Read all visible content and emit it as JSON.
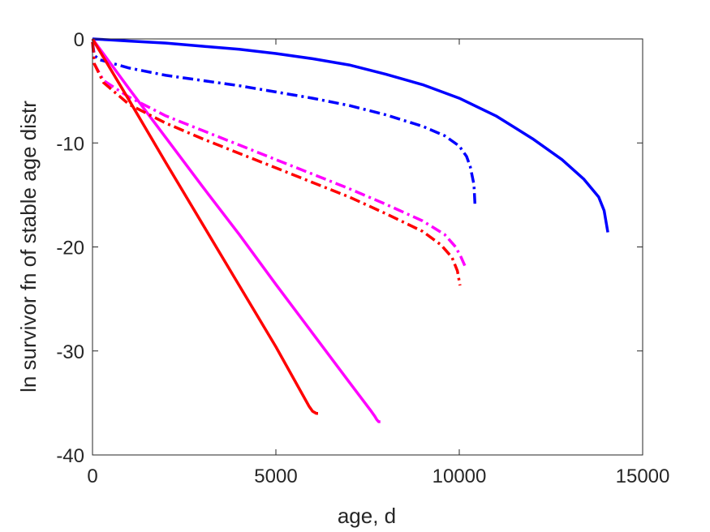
{
  "chart_data": {
    "type": "line",
    "xlabel": "age, d",
    "ylabel": "ln survivor fn of stable age distr",
    "xlim": [
      0,
      15000
    ],
    "ylim": [
      -40,
      0
    ],
    "xticks": [
      0,
      5000,
      10000,
      15000
    ],
    "xtick_labels": [
      "0",
      "5000",
      "10000",
      "15000"
    ],
    "yticks": [
      -40,
      -30,
      -20,
      -10,
      0
    ],
    "ytick_labels": [
      "-40",
      "-30",
      "-20",
      "-10",
      "0"
    ],
    "grid": false,
    "legend": "none",
    "series": [
      {
        "color": "#0000ff",
        "style": "solid",
        "x": [
          0,
          500,
          1000,
          2000,
          3000,
          4000,
          5000,
          6000,
          7000,
          8000,
          9000,
          10000,
          11000,
          12000,
          12800,
          13400,
          13800,
          13950,
          14050
        ],
        "y": [
          0,
          -0.1,
          -0.2,
          -0.4,
          -0.7,
          -1.0,
          -1.4,
          -1.9,
          -2.5,
          -3.4,
          -4.4,
          -5.7,
          -7.4,
          -9.6,
          -11.6,
          -13.5,
          -15.2,
          -16.5,
          -18.6
        ]
      },
      {
        "color": "#0000ff",
        "style": "dashdot",
        "x": [
          0,
          50,
          200,
          1000,
          2000,
          3000,
          4000,
          5000,
          6000,
          7000,
          8000,
          9000,
          9600,
          10000,
          10200,
          10300,
          10400,
          10430
        ],
        "y": [
          -0.3,
          -1.6,
          -2.0,
          -2.8,
          -3.5,
          -4.0,
          -4.5,
          -5.1,
          -5.7,
          -6.4,
          -7.3,
          -8.4,
          -9.3,
          -10.3,
          -11.3,
          -12.3,
          -14.0,
          -16.0
        ]
      },
      {
        "color": "#ff00ff",
        "style": "solid",
        "x": [
          0,
          1000,
          2000,
          3000,
          4000,
          5000,
          6000,
          7000,
          7600,
          7700,
          7750,
          7800,
          7850
        ],
        "y": [
          0,
          -4.8,
          -9.5,
          -14.2,
          -18.8,
          -23.6,
          -28.3,
          -33.0,
          -35.8,
          -36.3,
          -36.6,
          -36.8,
          -36.8
        ]
      },
      {
        "color": "#ff00ff",
        "style": "dashdot",
        "x": [
          0,
          50,
          300,
          1000,
          2000,
          3000,
          4000,
          5000,
          6000,
          7000,
          8000,
          9000,
          9600,
          9900,
          10050,
          10150
        ],
        "y": [
          -0.3,
          -2.4,
          -4.0,
          -5.6,
          -7.4,
          -8.8,
          -10.2,
          -11.6,
          -13.0,
          -14.4,
          -15.9,
          -17.5,
          -18.8,
          -20.0,
          -21.0,
          -21.8
        ]
      },
      {
        "color": "#ff0000",
        "style": "solid",
        "x": [
          0,
          1000,
          2000,
          3000,
          4000,
          5000,
          5900,
          6000,
          6100,
          6150
        ],
        "y": [
          0,
          -5.9,
          -11.9,
          -17.8,
          -23.7,
          -29.6,
          -35.3,
          -35.8,
          -36.0,
          -36.0
        ]
      },
      {
        "color": "#ff0000",
        "style": "dashdot",
        "x": [
          0,
          50,
          300,
          1000,
          2000,
          3000,
          4000,
          5000,
          6000,
          7000,
          8000,
          9000,
          9500,
          9800,
          9950,
          10020
        ],
        "y": [
          -0.3,
          -2.4,
          -4.2,
          -6.3,
          -8.1,
          -9.6,
          -11.0,
          -12.4,
          -13.8,
          -15.2,
          -16.8,
          -18.5,
          -19.8,
          -21.0,
          -22.3,
          -23.7
        ]
      }
    ]
  }
}
